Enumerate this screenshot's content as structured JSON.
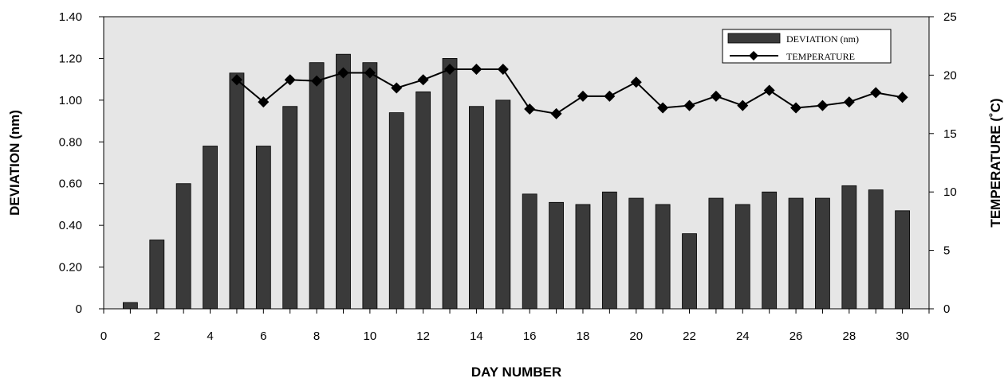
{
  "chart_data": {
    "type": "bar",
    "title": "",
    "xlabel": "DAY NUMBER",
    "ylabel": "DEVIATION (nm)",
    "y2label": "TEMPERATURE (˚C)",
    "x": [
      1,
      2,
      3,
      4,
      5,
      6,
      7,
      8,
      9,
      10,
      11,
      12,
      13,
      14,
      15,
      16,
      17,
      18,
      19,
      20,
      21,
      22,
      23,
      24,
      25,
      26,
      27,
      28,
      29,
      30
    ],
    "xlim": [
      0,
      31
    ],
    "xticks": [
      0,
      2,
      4,
      6,
      8,
      10,
      12,
      14,
      16,
      18,
      20,
      22,
      24,
      26,
      28,
      30
    ],
    "ylim": [
      0,
      1.4
    ],
    "yticks": [
      0,
      0.2,
      0.4,
      0.6,
      0.8,
      1.0,
      1.2,
      1.4
    ],
    "ytick_labels": [
      "0",
      "0.20",
      "0.40",
      "0.60",
      "0.80",
      "1.00",
      "1.20",
      "1.40"
    ],
    "y2lim": [
      0,
      25
    ],
    "y2ticks": [
      0,
      5,
      10,
      15,
      20,
      25
    ],
    "grid": false,
    "legend": "top-right",
    "series": [
      {
        "name": "DEVIATION (nm)",
        "type": "bar",
        "axis": "left",
        "color": "#3a3a3a",
        "values": [
          0.03,
          0.33,
          0.6,
          0.78,
          1.13,
          0.78,
          0.97,
          1.18,
          1.22,
          1.18,
          0.94,
          1.04,
          1.2,
          0.97,
          1.0,
          0.55,
          0.51,
          0.5,
          0.56,
          0.53,
          0.5,
          0.36,
          0.53,
          0.5,
          0.56,
          0.53,
          0.53,
          0.59,
          0.57,
          0.47
        ]
      },
      {
        "name": "TEMPERATURE",
        "type": "line",
        "axis": "right",
        "color": "#000000",
        "x": [
          5,
          6,
          7,
          8,
          9,
          10,
          11,
          12,
          13,
          14,
          15,
          16,
          17,
          18,
          19,
          20,
          21,
          22,
          23,
          24,
          25,
          26,
          27,
          28,
          29,
          30
        ],
        "values": [
          19.6,
          17.7,
          19.6,
          19.5,
          20.2,
          20.2,
          18.9,
          19.6,
          20.5,
          20.5,
          20.5,
          17.1,
          16.7,
          18.2,
          18.2,
          19.4,
          17.2,
          17.4,
          18.2,
          17.4,
          18.7,
          17.2,
          17.4,
          17.7,
          18.5,
          18.1
        ]
      }
    ]
  }
}
